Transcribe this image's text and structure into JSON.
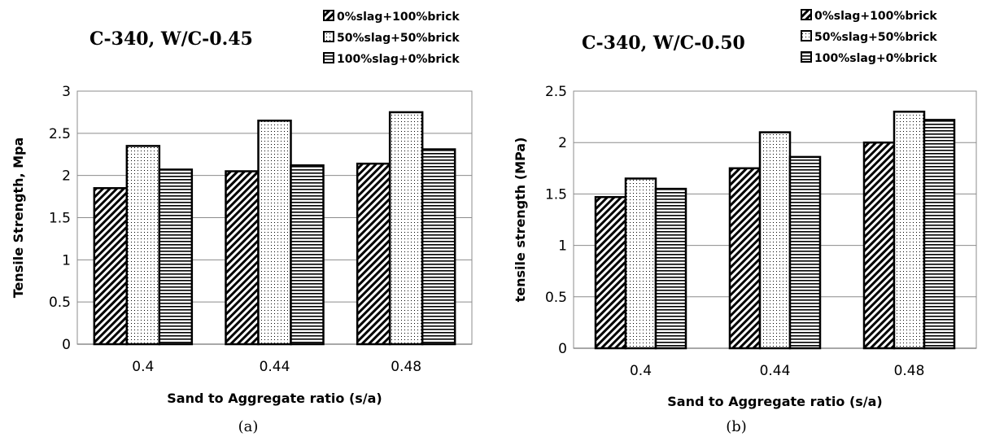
{
  "chart_data": [
    {
      "type": "bar",
      "title": "C-340, W/C-0.45",
      "caption": "(a)",
      "xlabel": "Sand to Aggregate ratio (s/a)",
      "ylabel": "Tensile Strength, Mpa",
      "categories": [
        "0.4",
        "0.44",
        "0.48"
      ],
      "ylim": [
        0,
        3
      ],
      "yticks": [
        "0",
        "0.5",
        "1",
        "1.5",
        "2",
        "2.5",
        "3"
      ],
      "ytick_values": [
        0,
        0.5,
        1,
        1.5,
        2,
        2.5,
        3
      ],
      "grid": true,
      "legend_position": "top-right",
      "series": [
        {
          "name": "0%slag+100%brick",
          "pattern": "diagonal-hatch",
          "values": [
            1.85,
            2.05,
            2.14
          ]
        },
        {
          "name": "50%slag+50%brick",
          "pattern": "dots",
          "values": [
            2.35,
            2.65,
            2.75
          ]
        },
        {
          "name": "100%slag+0%brick",
          "pattern": "horizontal-lines",
          "values": [
            2.07,
            2.12,
            2.31
          ]
        }
      ]
    },
    {
      "type": "bar",
      "title": "C-340, W/C-0.50",
      "caption": "(b)",
      "xlabel": "Sand to Aggregate ratio (s/a)",
      "ylabel": "tensile strength (MPa)",
      "categories": [
        "0.4",
        "0.44",
        "0.48"
      ],
      "ylim": [
        0,
        2.5
      ],
      "yticks": [
        "0",
        "0.5",
        "1",
        "1.5",
        "2",
        "2.5"
      ],
      "ytick_values": [
        0,
        0.5,
        1,
        1.5,
        2,
        2.5
      ],
      "grid": true,
      "legend_position": "top-right",
      "series": [
        {
          "name": "0%slag+100%brick",
          "pattern": "diagonal-hatch",
          "values": [
            1.47,
            1.75,
            2.0
          ]
        },
        {
          "name": "50%slag+50%brick",
          "pattern": "dots",
          "values": [
            1.65,
            2.1,
            2.3
          ]
        },
        {
          "name": "100%slag+0%brick",
          "pattern": "horizontal-lines",
          "values": [
            1.55,
            1.86,
            2.22
          ]
        }
      ]
    }
  ]
}
